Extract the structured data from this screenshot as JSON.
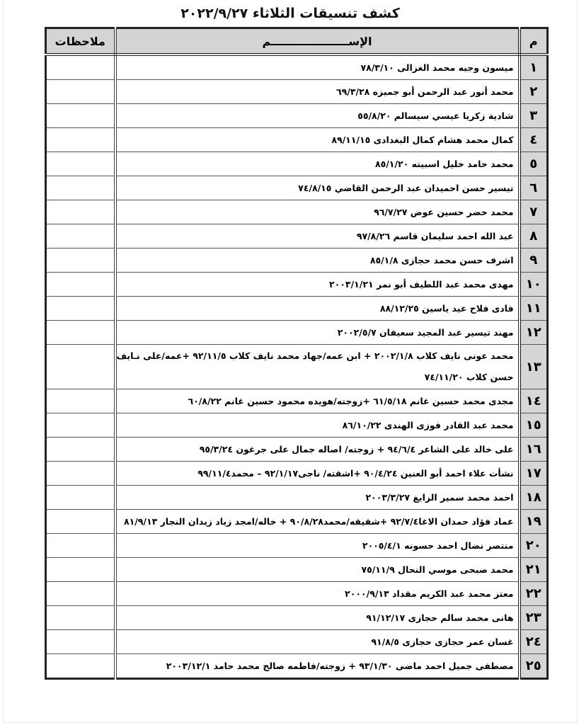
{
  "title": "كشف تنسيقات الثلاثاء ٢٠٢٢/٩/٢٧",
  "headers": {
    "number": "م",
    "name": "الإســــــــــــــــــــم",
    "notes": "ملاحظات"
  },
  "rows": [
    {
      "n": "١",
      "name": "ميسون وجيه محمد الغزالى ٧٨/٣/١٠",
      "notes": ""
    },
    {
      "n": "٢",
      "name": "محمد أنور عبد الرحمن أبو جميزه ٦٩/٣/٢٨",
      "notes": ""
    },
    {
      "n": "٣",
      "name": "شادية زكريا عيسي سيسالم ٥٥/٨/٢٠",
      "notes": ""
    },
    {
      "n": "٤",
      "name": "كمال محمد هشام كمال البغدادى ٨٩/١١/١٥",
      "notes": ""
    },
    {
      "n": "٥",
      "name": "محمد حامد خليل اسبيته ٨٥/١/٢٠",
      "notes": ""
    },
    {
      "n": "٦",
      "name": "تيسير حسن احميدان عبد الرحمن القاضي ٧٤/٨/١٥",
      "notes": ""
    },
    {
      "n": "٧",
      "name": "محمد خضر حسين عوض ٩٦/٧/٢٧",
      "notes": ""
    },
    {
      "n": "٨",
      "name": "عبد الله احمد سليمان قاسم ٩٧/٨/٢٦",
      "notes": ""
    },
    {
      "n": "٩",
      "name": "اشرف حسن محمد حجازى ٨٥/١/٨",
      "notes": ""
    },
    {
      "n": "١٠",
      "name": "مهدى محمد عبد اللطيف أبو نمر ٢٠٠٣/١/٢١",
      "notes": ""
    },
    {
      "n": "١١",
      "name": "فادى فلاح عيد ياسين ٨٨/١٢/٢٥",
      "notes": ""
    },
    {
      "n": "١٢",
      "name": "مهند تيسير عبد المجيد سعيفان ٢٠٠٢/٥/٧",
      "notes": ""
    },
    {
      "n": "١٣",
      "name": "محمد عونى نايف كلاب ٢٠٠٢/١/٨ + ابن عمه/جهاد محمد نايف كلاب ٩٢/١١/٥ +عمه/على نـايف حسن كلاب ٧٤/١١/٢٠",
      "notes": ""
    },
    {
      "n": "١٤",
      "name": "مجدى محمد حسين غانم ٦١/٥/١٨ +زوجته/هويده محمود حسين غانم ٦٠/٨/٢٢",
      "notes": ""
    },
    {
      "n": "١٥",
      "name": "محمد عبد القادر فوزى الهندى ٨٦/١٠/٢٢",
      "notes": ""
    },
    {
      "n": "١٦",
      "name": "على خالد على الشاعر ٩٤/٦/٤ + زوجته/ اصاله جمال على جرغون ٩٥/٣/٢٤",
      "notes": ""
    },
    {
      "n": "١٧",
      "name": "نشأت علاء احمد أبو العنين ٩٠/٤/٢٤ +اشقته/ ناجى٩٢/١/١٧ – محمد٩٩/١١/٤",
      "notes": ""
    },
    {
      "n": "١٨",
      "name": "احمد محمد سمير الزايغ ٢٠٠٣/٣/٢٧",
      "notes": ""
    },
    {
      "n": "١٩",
      "name": "عماد فؤاد حمدان الاغا٩٢/٧/٤ +شقيقه/محمد٩٠/٨/٢٨ + خاله/امجد زياد زيدان النجار ٨١/٩/١٣",
      "notes": ""
    },
    {
      "n": "٢٠",
      "name": "منتصر نضال احمد حسونه ٢٠٠٥/٤/١",
      "notes": ""
    },
    {
      "n": "٢١",
      "name": "محمد صبحى موسي النحال ٧٥/١١/٩",
      "notes": ""
    },
    {
      "n": "٢٢",
      "name": "معتز محمد عبد الكريم مقداد ٢٠٠٠/٩/١٣",
      "notes": ""
    },
    {
      "n": "٢٣",
      "name": "هانى محمد سالم حجازى ٩١/١٢/١٧",
      "notes": ""
    },
    {
      "n": "٢٤",
      "name": "غسان عمر حجازى حجازى ٩١/٨/٥",
      "notes": ""
    },
    {
      "n": "٢٥",
      "name": "مصطفى جميل احمد ماضى ٩٣/١/٣٠ + زوجته/فاطمه صالح محمد حامد ٢٠٠٣/١٢/١",
      "notes": ""
    }
  ]
}
